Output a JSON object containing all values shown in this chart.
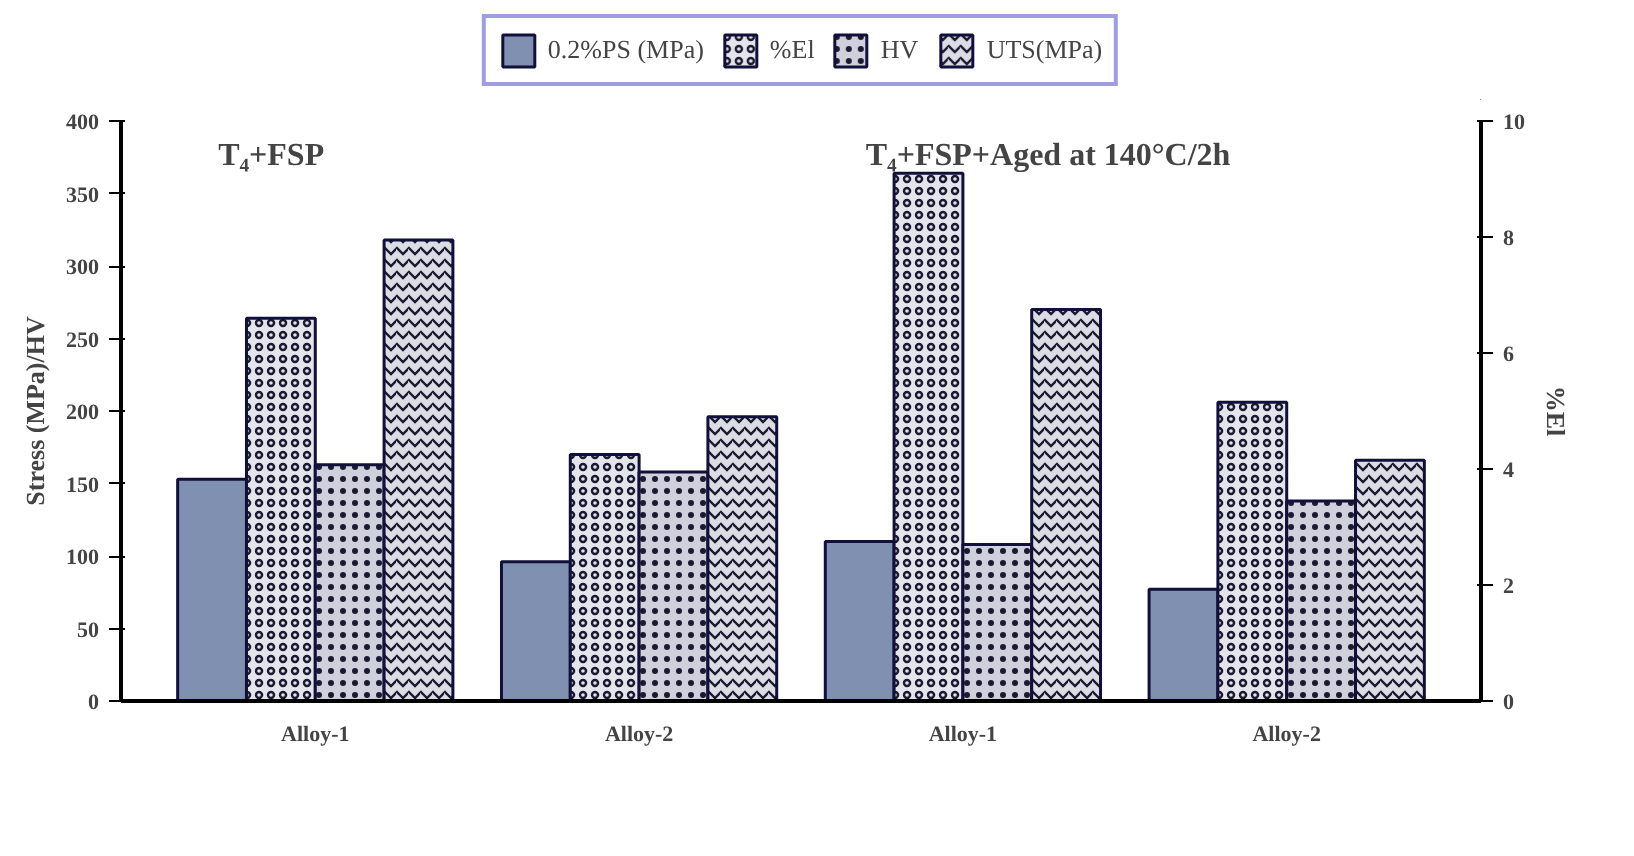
{
  "chart_data": {
    "type": "bar",
    "categories": [
      "Alloy-1",
      "Alloy-2",
      "Alloy-1",
      "Alloy-2"
    ],
    "series": [
      {
        "name": "0.2%PS (MPa)",
        "color": "#8090b0",
        "values": [
          153,
          96,
          110,
          77
        ]
      },
      {
        "name": "%El",
        "color": "#e4e4ec",
        "axis": "y2",
        "values": [
          6.6,
          4.25,
          9.1,
          5.15
        ]
      },
      {
        "name": "HV",
        "color": "#d0d0dc",
        "values": [
          163,
          158,
          108,
          138
        ]
      },
      {
        "name": "UTS(MPa)",
        "color": "#dcdce4",
        "values": [
          318,
          196,
          270,
          166
        ]
      }
    ],
    "ylabel": "Stress (MPa)/HV",
    "y2label": "%El",
    "ylim": [
      0,
      400
    ],
    "yticks": [
      0,
      50,
      100,
      150,
      200,
      250,
      300,
      350,
      400
    ],
    "y2lim": [
      0,
      10
    ],
    "y2ticks": [
      0,
      2,
      4,
      6,
      8,
      10
    ],
    "annotations": [
      "T₄+FSP",
      "T₄+FSP+Aged at 140°C/2h"
    ],
    "legend": "top",
    "grid": false
  }
}
